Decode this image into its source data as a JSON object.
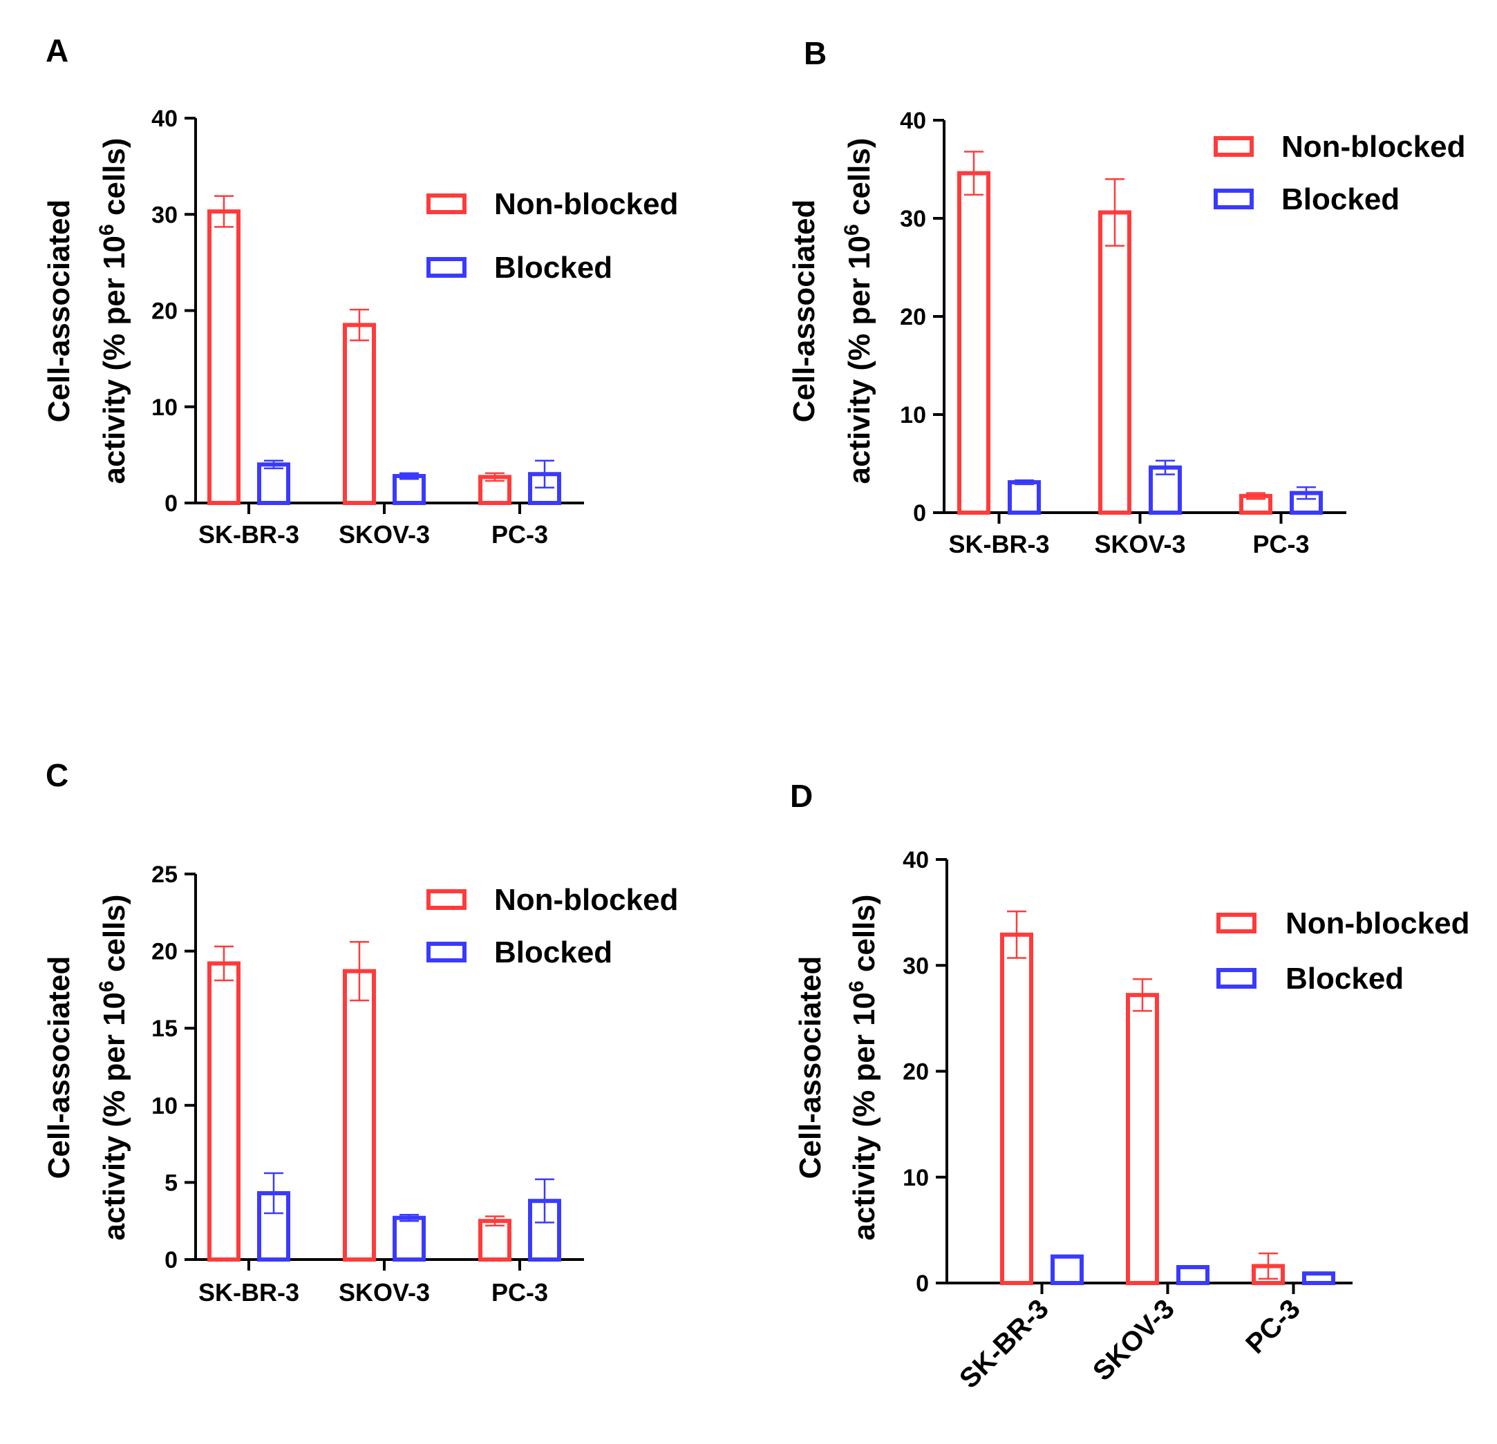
{
  "colors": {
    "non_blocked": "#ff3b3b",
    "blocked": "#3a3aff"
  },
  "chart_data": [
    {
      "type": "bar",
      "panel_label": "A",
      "categories": [
        "SK-BR-3",
        "SKOV-3",
        "PC-3"
      ],
      "series": [
        {
          "name": "Non-blocked",
          "values": [
            30.3,
            18.5,
            2.7
          ],
          "errors": [
            1.6,
            1.6,
            0.4
          ]
        },
        {
          "name": "Blocked",
          "values": [
            4.0,
            2.8,
            3.0
          ],
          "errors": [
            0.4,
            0.3,
            1.4
          ]
        }
      ],
      "ylabel_line1": "Cell-associated",
      "ylabel_line2_pre": "activity (% per 10",
      "ylabel_sup": "6",
      "ylabel_line2_post": " cells)",
      "ylim": [
        0,
        40
      ],
      "yticks": [
        0,
        10,
        20,
        30,
        40
      ],
      "xtick_rotation": 0,
      "legend": "top-right",
      "grid": false
    },
    {
      "type": "bar",
      "panel_label": "B",
      "categories": [
        "SK-BR-3",
        "SKOV-3",
        "PC-3"
      ],
      "series": [
        {
          "name": "Non-blocked",
          "values": [
            34.6,
            30.6,
            1.7
          ],
          "errors": [
            2.2,
            3.4,
            0.3
          ]
        },
        {
          "name": "Blocked",
          "values": [
            3.1,
            4.6,
            2.0
          ],
          "errors": [
            0.2,
            0.7,
            0.6
          ]
        }
      ],
      "ylabel_line1": "Cell-associated",
      "ylabel_line2_pre": "activity (% per 10",
      "ylabel_sup": "6",
      "ylabel_line2_post": " cells)",
      "ylim": [
        0,
        40
      ],
      "yticks": [
        0,
        10,
        20,
        30,
        40
      ],
      "xtick_rotation": 0,
      "legend": "top-right",
      "grid": false
    },
    {
      "type": "bar",
      "panel_label": "C",
      "categories": [
        "SK-BR-3",
        "SKOV-3",
        "PC-3"
      ],
      "series": [
        {
          "name": "Non-blocked",
          "values": [
            19.2,
            18.7,
            2.5
          ],
          "errors": [
            1.1,
            1.9,
            0.3
          ]
        },
        {
          "name": "Blocked",
          "values": [
            4.3,
            2.7,
            3.8
          ],
          "errors": [
            1.3,
            0.2,
            1.4
          ]
        }
      ],
      "ylabel_line1": "Cell-associated",
      "ylabel_line2_pre": "activity (% per 10",
      "ylabel_sup": "6",
      "ylabel_line2_post": " cells)",
      "ylim": [
        0,
        25
      ],
      "yticks": [
        0,
        5,
        10,
        15,
        20,
        25
      ],
      "xtick_rotation": 0,
      "legend": "top-right",
      "grid": false
    },
    {
      "type": "bar",
      "panel_label": "D",
      "categories": [
        "SK-BR-3",
        "SKOV-3",
        "PC-3"
      ],
      "series": [
        {
          "name": "Non-blocked",
          "values": [
            32.9,
            27.2,
            1.6
          ],
          "errors": [
            2.2,
            1.5,
            1.2
          ]
        },
        {
          "name": "Blocked",
          "values": [
            2.5,
            1.5,
            0.9
          ],
          "errors": [
            0.1,
            0.1,
            0.1
          ]
        }
      ],
      "ylabel_line1": "Cell-associated",
      "ylabel_line2_pre": "activity (% per 10",
      "ylabel_sup": "6",
      "ylabel_line2_post": " cells)",
      "ylim": [
        0,
        40
      ],
      "yticks": [
        0,
        10,
        20,
        30,
        40
      ],
      "xtick_rotation": -45,
      "legend": "top-right",
      "grid": false
    }
  ]
}
